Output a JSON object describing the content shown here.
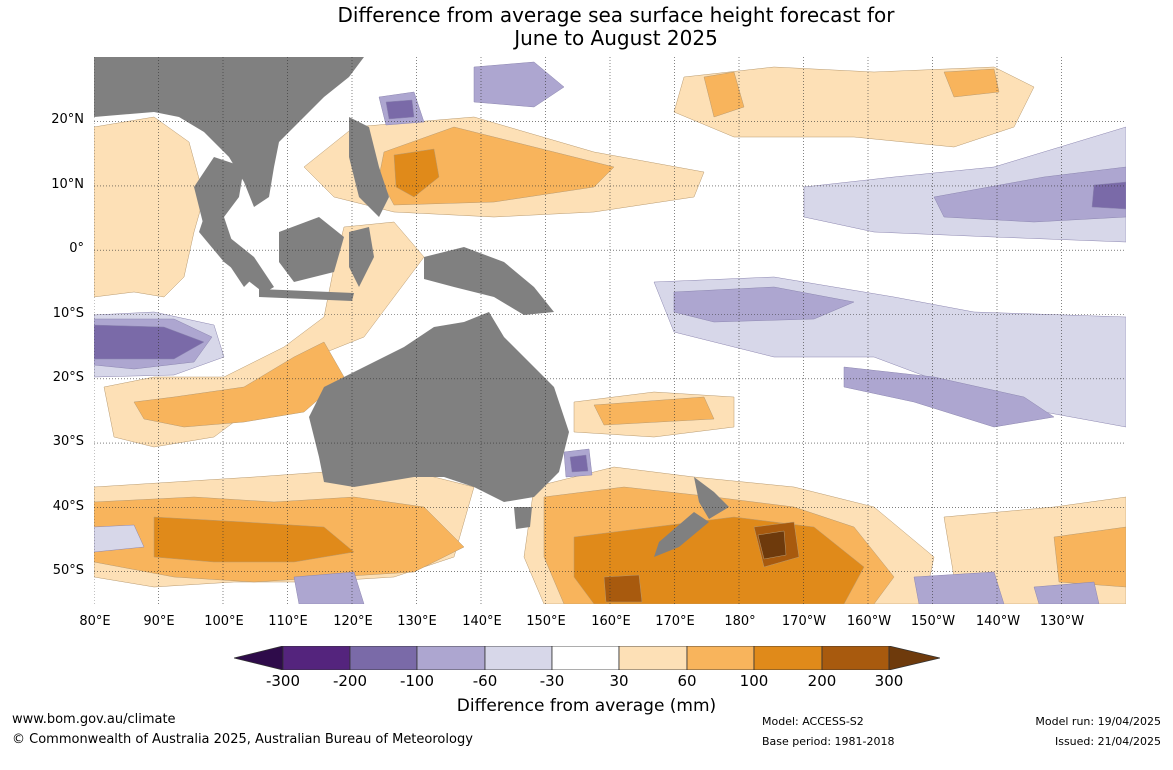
{
  "title_line1": "Difference from average sea surface height forecast for",
  "title_line2": "June to August 2025",
  "lat_labels": [
    "20°N",
    "10°N",
    "0°",
    "10°S",
    "20°S",
    "30°S",
    "40°S",
    "50°S"
  ],
  "lon_labels": [
    "80°E",
    "90°E",
    "100°E",
    "110°E",
    "120°E",
    "130°E",
    "140°E",
    "150°E",
    "160°E",
    "170°E",
    "180°",
    "170°W",
    "160°W",
    "150°W",
    "140°W",
    "130°W"
  ],
  "legend": {
    "title": "Difference from average (mm)",
    "ticks": [
      "-300",
      "-200",
      "-100",
      "-60",
      "-30",
      "30",
      "60",
      "100",
      "200",
      "300"
    ],
    "colors": {
      "lt_-300": "#2e0b4a",
      "-300_-200": "#54247d",
      "-200_-100": "#7a6aa8",
      "-100_-60": "#ada6d0",
      "-60_-30": "#d7d7e9",
      "-30_30": "#ffffff",
      "30_60": "#fde0b6",
      "60_100": "#f8b45c",
      "100_200": "#e08a1a",
      "200_300": "#a85a0e",
      "gt_300": "#6e3a0c"
    }
  },
  "land_color": "#808080",
  "footer": {
    "website": "www.bom.gov.au/climate",
    "copyright": "© Commonwealth of Australia 2025, Australian Bureau of Meteorology",
    "model": "Model: ACCESS-S2",
    "base_period": "Base period: 1981-2018",
    "model_run": "Model run: 19/04/2025",
    "issued": "Issued: 21/04/2025"
  }
}
